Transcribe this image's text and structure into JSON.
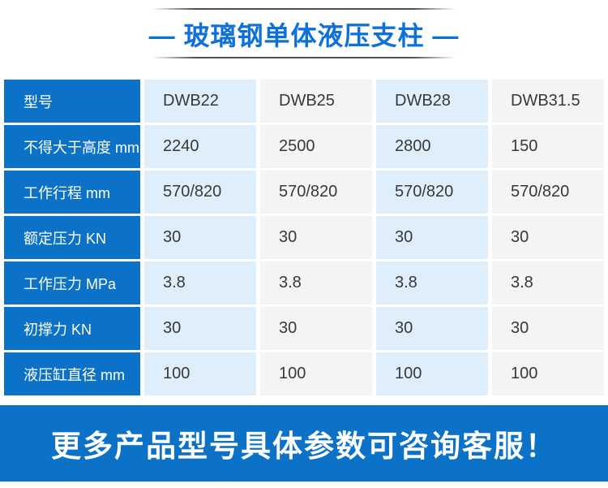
{
  "title": {
    "text": "— 玻璃钢单体液压支柱 —"
  },
  "table": {
    "header_label": "型号",
    "models": [
      "DWB22",
      "DWB25",
      "DWB28",
      "DWB31.5"
    ],
    "rows": [
      {
        "label": "不得大于高度 mm",
        "values": [
          "2240",
          "2500",
          "2800",
          "150"
        ]
      },
      {
        "label": "工作行程 mm",
        "values": [
          "570/820",
          "570/820",
          "570/820",
          "570/820"
        ]
      },
      {
        "label": "额定压力 KN",
        "values": [
          "30",
          "30",
          "30",
          "30"
        ]
      },
      {
        "label": "工作压力 MPa",
        "values": [
          "3.8",
          "3.8",
          "3.8",
          "3.8"
        ]
      },
      {
        "label": "初撑力 KN",
        "values": [
          "30",
          "30",
          "30",
          "30"
        ]
      },
      {
        "label": "液压缸直径 mm",
        "values": [
          "100",
          "100",
          "100",
          "100"
        ]
      }
    ]
  },
  "footer": {
    "text": "更多产品型号具体参数可咨询客服！"
  },
  "colors": {
    "title_blue": "#0e70d9",
    "cell_blue": "#0b72c8",
    "banner_blue": "#0b72c8",
    "light_blue": "#dfeefb",
    "light_gray": "#f4f4f2",
    "text_dark": "#383838"
  }
}
